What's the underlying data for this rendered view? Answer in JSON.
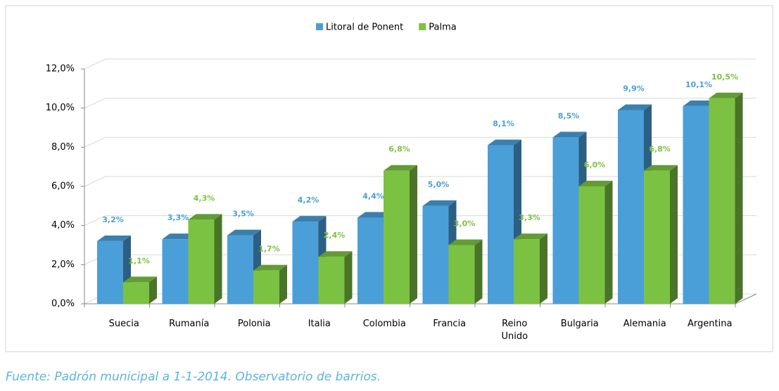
{
  "chart_data": {
    "type": "bar3d",
    "categories": [
      "Suecia",
      "Rumanía",
      "Polonia",
      "Italia",
      "Colombia",
      "Francia",
      "Reino Unido",
      "Bulgaria",
      "Alemania",
      "Argentina"
    ],
    "series": [
      {
        "name": "Litoral de Ponent",
        "color": "#4a9fd8",
        "values": [
          3.2,
          3.3,
          3.5,
          4.2,
          4.4,
          5.0,
          8.1,
          8.5,
          9.9,
          10.1
        ],
        "value_labels": [
          "3,2%",
          "3,3%",
          "3,5%",
          "4,2%",
          "4,4%",
          "5,0%",
          "8,1%",
          "8,5%",
          "9,9%",
          "10,1%"
        ]
      },
      {
        "name": "Palma",
        "color": "#7cc242",
        "values": [
          1.1,
          4.3,
          1.7,
          2.4,
          6.8,
          3.0,
          3.3,
          6.0,
          6.8,
          10.5
        ],
        "value_labels": [
          "1,1%",
          "4,3%",
          "1,7%",
          "2,4%",
          "6,8%",
          "3,0%",
          "3,3%",
          "6,0%",
          "6,8%",
          "10,5%"
        ]
      }
    ],
    "ylim": [
      0,
      12
    ],
    "yticks": [
      {
        "value": 0,
        "label": "0,0%"
      },
      {
        "value": 2,
        "label": "2,0%"
      },
      {
        "value": 4,
        "label": "4,0%"
      },
      {
        "value": 6,
        "label": "6,0%"
      },
      {
        "value": 8,
        "label": "8,0%"
      },
      {
        "value": 10,
        "label": "10,0%"
      },
      {
        "value": 12,
        "label": "12,0%"
      }
    ],
    "grid": true,
    "legend": "top",
    "source": "Fuente: Padrón municipal a 1-1-2014. Observatorio de barrios."
  }
}
